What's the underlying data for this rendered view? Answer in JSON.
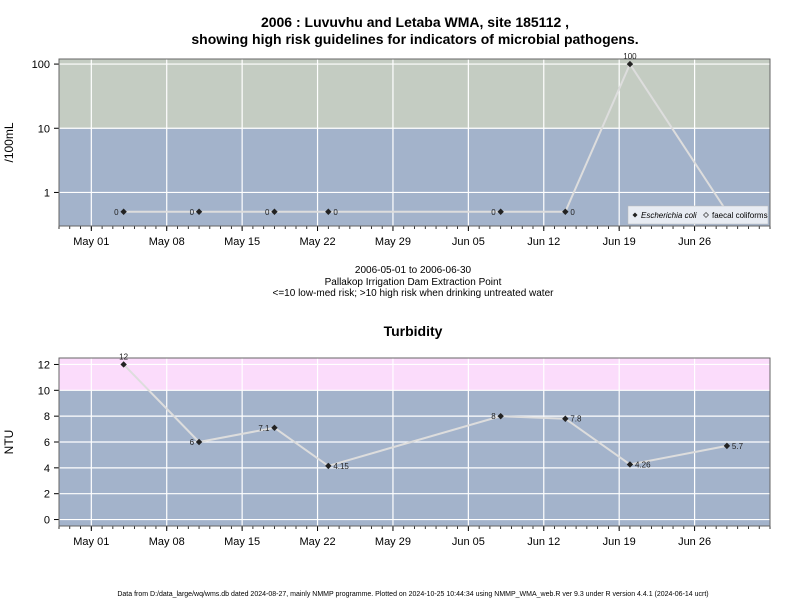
{
  "title_line1": "2006 : Luvuvhu and Letaba WMA, site 185112 ,",
  "title_line2": "showing high risk guidelines for indicators of microbial pathogens.",
  "caption_line1": "2006-05-01 to 2006-06-30",
  "caption_line2": "Pallakop Irrigation Dam Extraction Point",
  "caption_line3": "<=10 low-med risk; >10 high risk when drinking untreated water",
  "footer": "Data from D:/data_large/wq/wms.db dated 2024-08-27, mainly NMMP programme. Plotted on 2024-10-25 10:44:34 using NMMP_WMA_web.R ver 9.3 under R version 4.4.1 (2024-06-14 ucrt)",
  "colors": {
    "panel_low": "#a3b3cb",
    "panel_high_micro": "#c4ccc2",
    "panel_high_turb": "#fbdcfb",
    "line": "#dddddd",
    "point": "#222222"
  },
  "chart_data": [
    {
      "type": "line",
      "title": "",
      "xlabel": "",
      "ylabel": "/100mL",
      "yscale": "log",
      "ylim": [
        0.3,
        120
      ],
      "yticks": [
        1,
        10,
        100
      ],
      "ytick_labels": [
        "1",
        "10",
        "100"
      ],
      "xlim": [
        "2006-04-28",
        "2006-07-03"
      ],
      "xticks": [
        "2006-05-01",
        "2006-05-08",
        "2006-05-15",
        "2006-05-22",
        "2006-05-29",
        "2006-06-05",
        "2006-06-12",
        "2006-06-19",
        "2006-06-26"
      ],
      "xtick_labels": [
        "May 01",
        "May 08",
        "May 15",
        "May 22",
        "May 29",
        "Jun 05",
        "Jun 12",
        "Jun 19",
        "Jun 26"
      ],
      "high_risk_threshold": 10,
      "grid": true,
      "legend_position": "bottom-right",
      "series": [
        {
          "name": "Escherichia coli",
          "x": [
            "2006-05-04",
            "2006-05-11",
            "2006-05-18",
            "2006-05-23",
            "2006-06-08",
            "2006-06-14",
            "2006-06-20",
            "2006-06-29"
          ],
          "values": [
            0.5,
            0.5,
            0.5,
            0.5,
            0.5,
            0.5,
            100,
            0.5
          ],
          "labels": [
            "0",
            "0",
            "0",
            "0",
            "0",
            "0",
            "100",
            "0"
          ],
          "label_side": [
            "left",
            "left",
            "left",
            "right",
            "left",
            "right",
            "top",
            "right"
          ]
        },
        {
          "name": "faecal coliforms",
          "x": [],
          "values": []
        }
      ]
    },
    {
      "type": "line",
      "title": "Turbidity",
      "xlabel": "",
      "ylabel": "NTU",
      "ylim": [
        -0.5,
        12.5
      ],
      "yticks": [
        0,
        2,
        4,
        6,
        8,
        10,
        12
      ],
      "ytick_labels": [
        "0",
        "2",
        "4",
        "6",
        "8",
        "10",
        "12"
      ],
      "xlim": [
        "2006-04-28",
        "2006-07-03"
      ],
      "xticks": [
        "2006-05-01",
        "2006-05-08",
        "2006-05-15",
        "2006-05-22",
        "2006-05-29",
        "2006-06-05",
        "2006-06-12",
        "2006-06-19",
        "2006-06-26"
      ],
      "xtick_labels": [
        "May 01",
        "May 08",
        "May 15",
        "May 22",
        "May 29",
        "Jun 05",
        "Jun 12",
        "Jun 19",
        "Jun 26"
      ],
      "high_risk_threshold": 10,
      "grid": true,
      "series": [
        {
          "x": [
            "2006-05-04",
            "2006-05-11",
            "2006-05-18",
            "2006-05-23",
            "2006-06-08",
            "2006-06-14",
            "2006-06-20",
            "2006-06-29"
          ],
          "values": [
            12,
            6,
            7.1,
            4.15,
            8,
            7.8,
            4.26,
            5.7
          ],
          "labels": [
            "12",
            "6",
            "7.1",
            "4.15",
            "8",
            "7.8",
            "4.26",
            "5.7"
          ],
          "label_side": [
            "top",
            "left",
            "left",
            "right",
            "left",
            "right",
            "right",
            "right"
          ]
        }
      ]
    }
  ]
}
